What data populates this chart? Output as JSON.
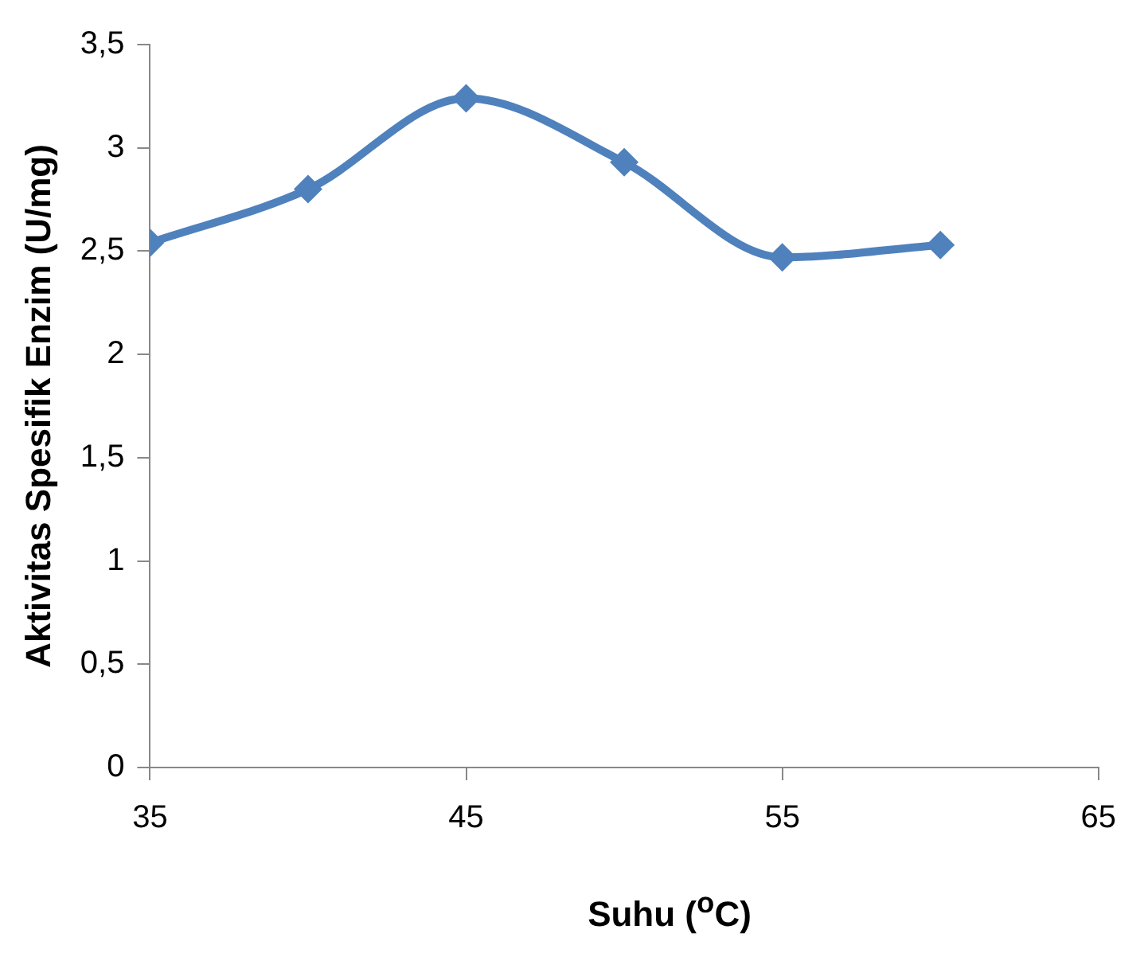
{
  "chart_data": {
    "type": "line",
    "xlabel": "Suhu ($^{o}$C)",
    "ylabel": "Aktivitas Spesifik Enzim (U/mg)",
    "x": [
      35,
      40,
      45,
      50,
      55,
      60
    ],
    "series": [
      {
        "color": "#4f81bd",
        "values": [
          2.54,
          2.8,
          3.24,
          2.93,
          2.47,
          2.53
        ]
      }
    ],
    "xlim": [
      35,
      65
    ],
    "xticks": [
      35,
      45,
      55,
      65
    ],
    "ylim": [
      0,
      3.5
    ],
    "yticks": [
      0,
      {
        "value": 0.5,
        "label": "0,5"
      },
      1,
      {
        "value": 1.5,
        "label": "1,5"
      },
      2,
      {
        "value": 2.5,
        "label": "2,5"
      },
      3,
      {
        "value": 3.5,
        "label": "3,5"
      }
    ],
    "grid": false,
    "legend": false,
    "marker": "diamond",
    "line_style": "solid"
  }
}
